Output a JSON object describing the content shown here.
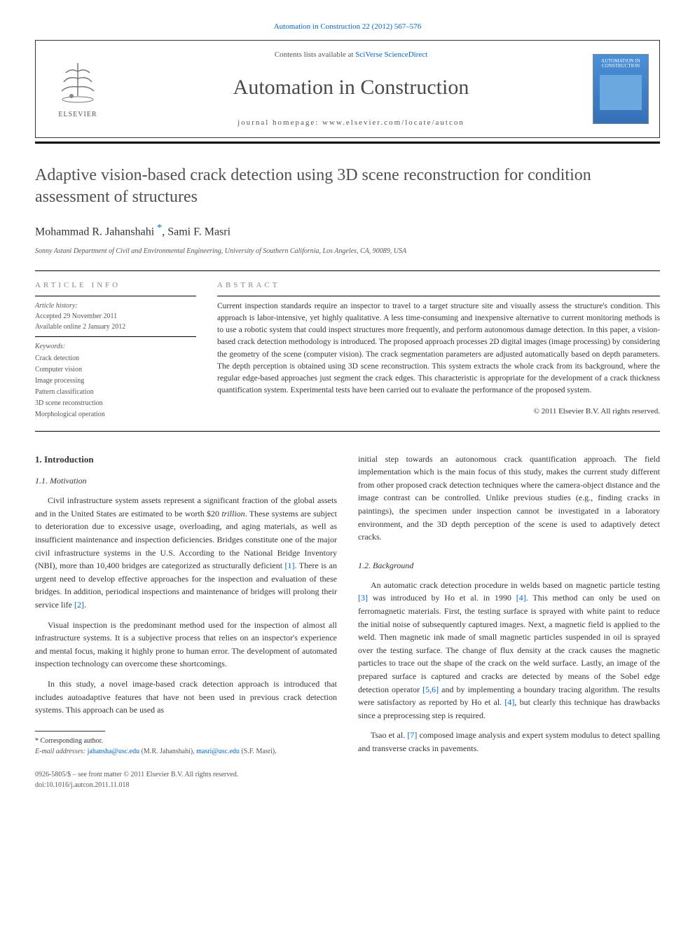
{
  "header": {
    "top_link": "Automation in Construction 22 (2012) 567–576",
    "contents_line_prefix": "Contents lists available at ",
    "contents_link": "SciVerse ScienceDirect",
    "journal_title": "Automation in Construction",
    "homepage_label": "journal homepage: www.elsevier.com/locate/autcon",
    "elsevier_label": "ELSEVIER",
    "cover_text": "AUTOMATION IN CONSTRUCTION"
  },
  "article": {
    "title": "Adaptive vision-based crack detection using 3D scene reconstruction for condition assessment of structures",
    "authors_html": "Mohammad R. Jahanshahi <span class='corr'>*</span>, Sami F. Masri",
    "affiliation": "Sonny Astani Department of Civil and Environmental Engineering, University of Southern California, Los Angeles, CA, 90089, USA"
  },
  "info": {
    "heading": "article info",
    "history_label": "Article history:",
    "accepted": "Accepted 29 November 2011",
    "online": "Available online 2 January 2012",
    "keywords_label": "Keywords:",
    "keywords": [
      "Crack detection",
      "Computer vision",
      "Image processing",
      "Pattern classification",
      "3D scene reconstruction",
      "Morphological operation"
    ]
  },
  "abstract": {
    "heading": "abstract",
    "text": "Current inspection standards require an inspector to travel to a target structure site and visually assess the structure's condition. This approach is labor-intensive, yet highly qualitative. A less time-consuming and inexpensive alternative to current monitoring methods is to use a robotic system that could inspect structures more frequently, and perform autonomous damage detection. In this paper, a vision-based crack detection methodology is introduced. The proposed approach processes 2D digital images (image processing) by considering the geometry of the scene (computer vision). The crack segmentation parameters are adjusted automatically based on depth parameters. The depth perception is obtained using 3D scene reconstruction. This system extracts the whole crack from its background, where the regular edge-based approaches just segment the crack edges. This characteristic is appropriate for the development of a crack thickness quantification system. Experimental tests have been carried out to evaluate the performance of the proposed system.",
    "copyright": "© 2011 Elsevier B.V. All rights reserved."
  },
  "body": {
    "sec1_heading": "1. Introduction",
    "sec11_heading": "1.1. Motivation",
    "sec12_heading": "1.2. Background",
    "col1_paras": [
      "Civil infrastructure system assets represent a significant fraction of the global assets and in the United States are estimated to be worth $20 <span class='num'>trillion</span>. These systems are subject to deterioration due to excessive usage, overloading, and aging materials, as well as insufficient maintenance and inspection deficiencies. Bridges constitute one of the major civil infrastructure systems in the U.S. According to the National Bridge Inventory (NBI), more than 10,400 bridges are categorized as structurally deficient <span class='ref'>[1]</span>. There is an urgent need to develop effective approaches for the inspection and evaluation of these bridges. In addition, periodical inspections and maintenance of bridges will prolong their service life <span class='ref'>[2]</span>.",
      "Visual inspection is the predominant method used for the inspection of almost all infrastructure systems. It is a subjective process that relies on an inspector's experience and mental focus, making it highly prone to human error. The development of automated inspection technology can overcome these shortcomings.",
      "In this study, a novel image-based crack detection approach is introduced that includes autoadaptive features that have not been used in previous crack detection systems. This approach can be used as"
    ],
    "col2_para_top": "initial step towards an autonomous crack quantification approach. The field implementation which is the main focus of this study, makes the current study different from other proposed crack detection techniques where the camera-object distance and the image contrast can be controlled. Unlike previous studies (e.g., finding cracks in paintings), the specimen under inspection cannot be investigated in a laboratory environment, and the 3D depth perception of the scene is used to adaptively detect cracks.",
    "col2_paras": [
      "An automatic crack detection procedure in welds based on magnetic particle testing <span class='ref'>[3]</span> was introduced by Ho et al. in 1990 <span class='ref'>[4]</span>. This method can only be used on ferromagnetic materials. First, the testing surface is sprayed with white paint to reduce the initial noise of subsequently captured images. Next, a magnetic field is applied to the weld. Then magnetic ink made of small magnetic particles suspended in oil is sprayed over the testing surface. The change of flux density at the crack causes the magnetic particles to trace out the shape of the crack on the weld surface. Lastly, an image of the prepared surface is captured and cracks are detected by means of the Sobel edge detection operator <span class='ref'>[5,6]</span> and by implementing a boundary tracing algorithm. The results were satisfactory as reported by Ho et al. <span class='ref'>[4]</span>, but clearly this technique has drawbacks since a preprocessing step is required.",
      "Tsao et al. <span class='ref'>[7]</span> composed image analysis and expert system modulus to detect spalling and transverse cracks in pavements."
    ]
  },
  "footnote": {
    "corr_label": "* Corresponding author.",
    "email_label": "E-mail addresses:",
    "email1": "jahansha@usc.edu",
    "email1_name": "(M.R. Jahanshahi),",
    "email2": "masri@usc.edu",
    "email2_name": "(S.F. Masri)."
  },
  "bottom": {
    "line1": "0926-5805/$ – see front matter © 2011 Elsevier B.V. All rights reserved.",
    "line2": "doi:10.1016/j.autcon.2011.11.018"
  },
  "colors": {
    "link": "#0066cc",
    "text": "#333333",
    "muted": "#555555",
    "heading_gray": "#888888",
    "rule": "#000000"
  }
}
